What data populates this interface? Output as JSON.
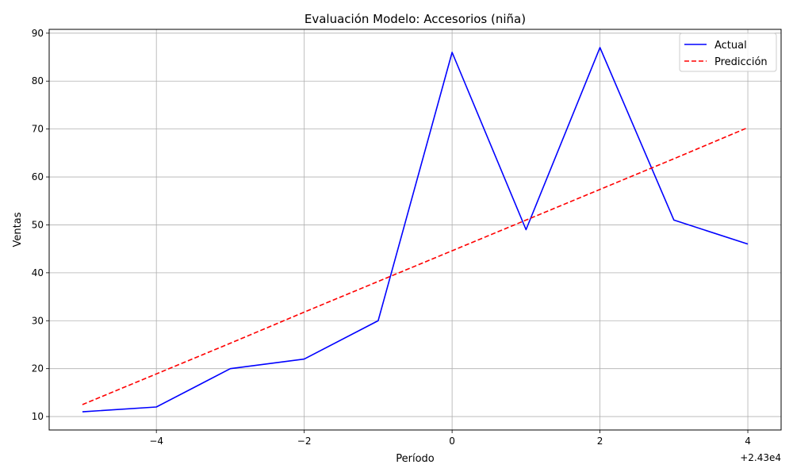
{
  "chart_data": {
    "type": "line",
    "title": "Evaluación Modelo: Accesorios (niña)",
    "xlabel": "Período",
    "ylabel": "Ventas",
    "x_offset_label": "+2.43e4",
    "x": [
      24295,
      24296,
      24297,
      24298,
      24299,
      24300,
      24301,
      24302,
      24303,
      24304
    ],
    "xlim": [
      24294.55,
      24304.45
    ],
    "ylim": [
      7.2,
      90.8
    ],
    "x_ticks": [
      24296,
      24298,
      24300,
      24302,
      24304
    ],
    "x_tick_labels": [
      "−4",
      "−2",
      "0",
      "2",
      "4"
    ],
    "y_ticks": [
      10,
      20,
      30,
      40,
      50,
      60,
      70,
      80,
      90
    ],
    "y_tick_labels": [
      "10",
      "20",
      "30",
      "40",
      "50",
      "60",
      "70",
      "80",
      "90"
    ],
    "grid": true,
    "legend_position": "top-right",
    "series": [
      {
        "name": "Actual",
        "color": "#0000ff",
        "style": "solid",
        "values": [
          11,
          12,
          20,
          22,
          30,
          86,
          49,
          87,
          51,
          46
        ]
      },
      {
        "name": "Predicción",
        "color": "#ff0000",
        "style": "dashed",
        "values": [
          12.5,
          18.9,
          25.3,
          31.8,
          38.2,
          44.6,
          51.0,
          57.4,
          63.8,
          70.3
        ]
      }
    ]
  }
}
